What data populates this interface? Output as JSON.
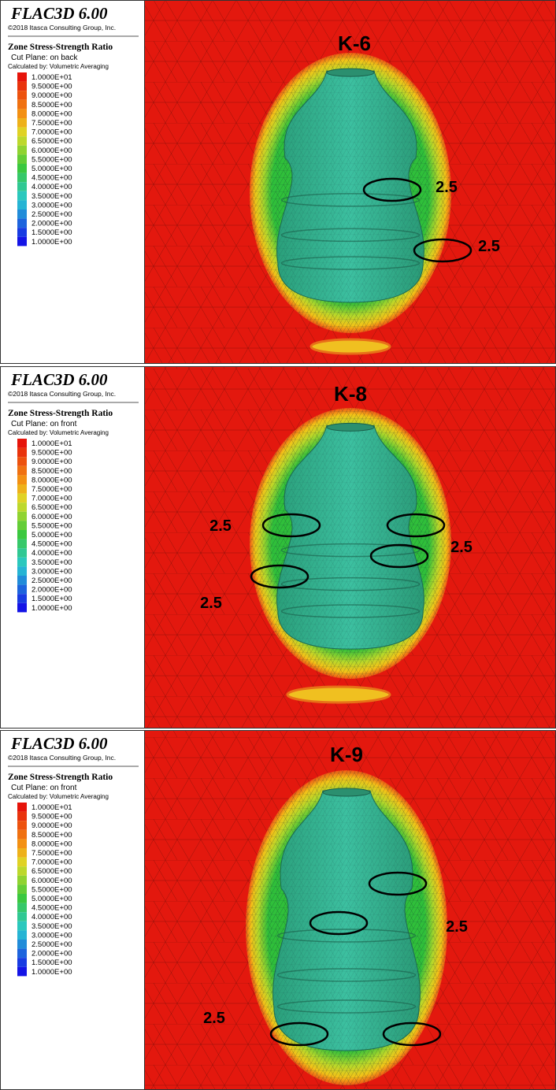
{
  "panels": [
    {
      "software": "FLAC3D 6.00",
      "copyright": "©2018 Itasca Consulting Group, Inc.",
      "legend_title": "Zone Stress-Strength Ratio",
      "cut_plane": "Cut Plane: on back",
      "calculated_by": "Calculated by: Volumetric Averaging",
      "legend_entries": [
        "1.0000E+01",
        "9.5000E+00",
        "9.0000E+00",
        "8.5000E+00",
        "8.0000E+00",
        "7.5000E+00",
        "7.0000E+00",
        "6.5000E+00",
        "6.0000E+00",
        "5.5000E+00",
        "5.0000E+00",
        "4.5000E+00",
        "4.0000E+00",
        "3.5000E+00",
        "3.0000E+00",
        "2.5000E+00",
        "2.0000E+00",
        "1.5000E+00",
        "1.0000E+00"
      ],
      "label": "K-6",
      "annotations": [
        "2.5",
        "2.5"
      ]
    },
    {
      "software": "FLAC3D 6.00",
      "copyright": "©2018 Itasca Consulting Group, Inc.",
      "legend_title": "Zone Stress-Strength Ratio",
      "cut_plane": "Cut Plane: on front",
      "calculated_by": "Calculated by: Volumetric Averaging",
      "legend_entries": [
        "1.0000E+01",
        "9.5000E+00",
        "9.0000E+00",
        "8.5000E+00",
        "8.0000E+00",
        "7.5000E+00",
        "7.0000E+00",
        "6.5000E+00",
        "6.0000E+00",
        "5.5000E+00",
        "5.0000E+00",
        "4.5000E+00",
        "4.0000E+00",
        "3.5000E+00",
        "3.0000E+00",
        "2.5000E+00",
        "2.0000E+00",
        "1.5000E+00",
        "1.0000E+00"
      ],
      "label": "K-8",
      "annotations": [
        "2.5",
        "2.5",
        "2.5"
      ]
    },
    {
      "software": "FLAC3D 6.00",
      "copyright": "©2018 Itasca Consulting Group, Inc.",
      "legend_title": "Zone Stress-Strength Ratio",
      "cut_plane": "Cut Plane: on front",
      "calculated_by": "Calculated by: Volumetric Averaging",
      "legend_entries": [
        "1.0000E+01",
        "9.5000E+00",
        "9.0000E+00",
        "8.5000E+00",
        "8.0000E+00",
        "7.5000E+00",
        "7.0000E+00",
        "6.5000E+00",
        "6.0000E+00",
        "5.5000E+00",
        "5.0000E+00",
        "4.5000E+00",
        "4.0000E+00",
        "3.5000E+00",
        "3.0000E+00",
        "2.5000E+00",
        "2.0000E+00",
        "1.5000E+00",
        "1.0000E+00"
      ],
      "label": "K-9",
      "annotations": [
        "2.5",
        "2.5"
      ]
    }
  ]
}
